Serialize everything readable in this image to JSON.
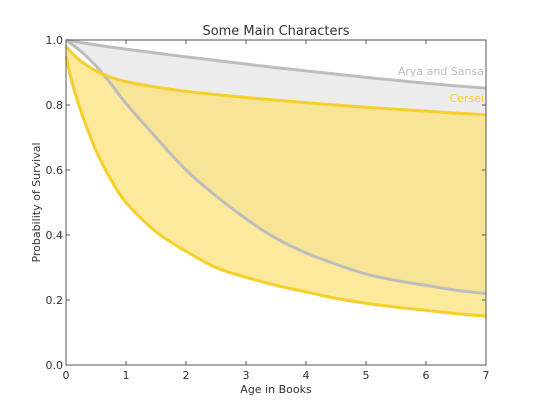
{
  "chart_data": {
    "type": "area",
    "title": "Some Main Characters",
    "xlabel": "Age in Books",
    "ylabel": "Probability of Survival",
    "xlim": [
      0,
      7
    ],
    "ylim": [
      0.0,
      1.0
    ],
    "xticks": [
      "0",
      "1",
      "2",
      "3",
      "4",
      "5",
      "6",
      "7"
    ],
    "yticks": [
      "0.0",
      "0.2",
      "0.4",
      "0.6",
      "0.8",
      "1.0"
    ],
    "grid": false,
    "series": [
      {
        "name": "Arya and Sansa",
        "color": "#bdbdbd",
        "fill": "#e6e6e6",
        "x": [
          0,
          0.25,
          0.5,
          0.75,
          1,
          1.5,
          2,
          2.5,
          3,
          3.5,
          4,
          4.5,
          5,
          5.5,
          6,
          6.5,
          7
        ],
        "upper": [
          1.0,
          0.992,
          0.985,
          0.978,
          0.972,
          0.96,
          0.948,
          0.937,
          0.926,
          0.915,
          0.905,
          0.895,
          0.885,
          0.876,
          0.867,
          0.859,
          0.852
        ],
        "lower": [
          1.0,
          0.965,
          0.92,
          0.865,
          0.805,
          0.7,
          0.6,
          0.52,
          0.45,
          0.39,
          0.345,
          0.31,
          0.28,
          0.26,
          0.245,
          0.23,
          0.22
        ]
      },
      {
        "name": "Cersei",
        "color": "#f5d02a",
        "fill": "#fbe27a",
        "x": [
          0,
          0.1,
          0.25,
          0.5,
          0.75,
          1,
          1.5,
          2,
          2.5,
          3,
          3.5,
          4,
          4.5,
          5,
          5.5,
          6,
          6.5,
          7
        ],
        "upper": [
          0.98,
          0.96,
          0.935,
          0.905,
          0.885,
          0.872,
          0.855,
          0.842,
          0.832,
          0.823,
          0.815,
          0.807,
          0.8,
          0.793,
          0.787,
          0.781,
          0.775,
          0.77
        ],
        "lower": [
          0.95,
          0.87,
          0.78,
          0.66,
          0.57,
          0.5,
          0.41,
          0.35,
          0.3,
          0.27,
          0.245,
          0.225,
          0.205,
          0.19,
          0.178,
          0.168,
          0.158,
          0.15
        ]
      }
    ]
  }
}
